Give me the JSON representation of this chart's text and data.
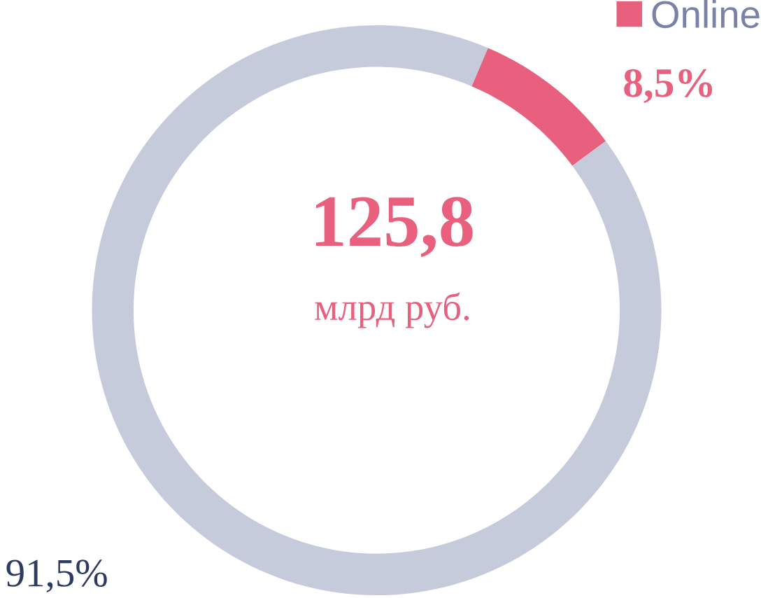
{
  "chart_data": {
    "type": "donut",
    "categories": [
      "Online",
      null
    ],
    "values": [
      8.5,
      91.5
    ],
    "colors": [
      "#e8607e",
      "#c6cbdb"
    ],
    "value_labels": [
      "8,5%",
      "91,5%"
    ],
    "annotations": [
      "125,8",
      "млрд руб."
    ],
    "legend": "top right"
  }
}
